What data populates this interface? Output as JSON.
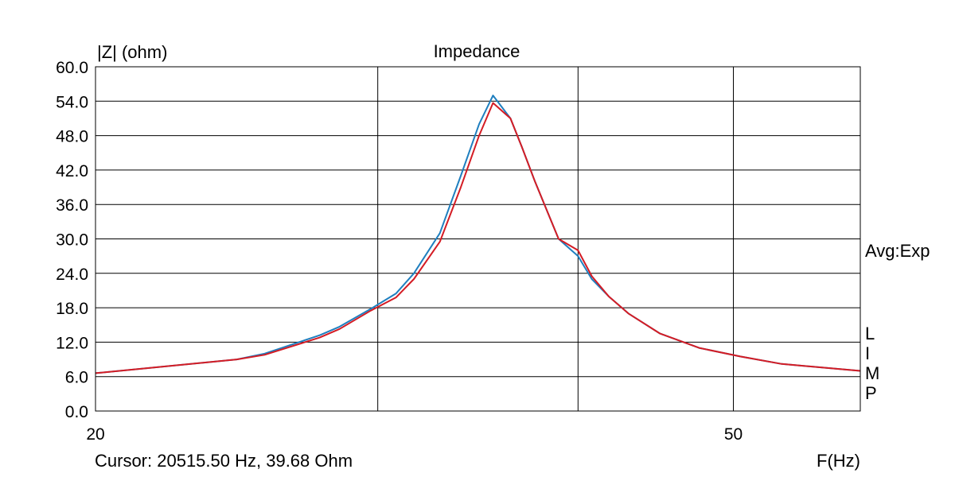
{
  "chart_data": {
    "type": "line",
    "title": "Impedance",
    "ylabel": "|Z| (ohm)",
    "xlabel": "F(Hz)",
    "x_scale": "log",
    "xlim": [
      20,
      60
    ],
    "ylim": [
      0,
      60
    ],
    "y_ticks": [
      "0.0",
      "6.0",
      "12.0",
      "18.0",
      "24.0",
      "30.0",
      "36.0",
      "42.0",
      "48.0",
      "54.0",
      "60.0"
    ],
    "x_tick_labels": [
      {
        "value": 20,
        "label": "20"
      },
      {
        "value": 50,
        "label": "50"
      }
    ],
    "x_gridlines": [
      20,
      30,
      40,
      50,
      60
    ],
    "grid": true,
    "series": [
      {
        "color": "#1f7fbf",
        "x": [
          20,
          24.5,
          25.5,
          27.6,
          28.4,
          29.7,
          30.8,
          31.6,
          32.8,
          33.8,
          34.7,
          35.4,
          36.3,
          36.9,
          37.6,
          38.9,
          40,
          40.8,
          41.8,
          43,
          45,
          47.6,
          50.5,
          53.6,
          60
        ],
        "y": [
          6.6,
          9.0,
          10.0,
          13.2,
          14.7,
          17.8,
          20.5,
          24.0,
          31.0,
          41.0,
          50.0,
          55.0,
          51.0,
          46.0,
          40.0,
          30.0,
          27.0,
          23.0,
          20.0,
          17.0,
          13.5,
          11.0,
          9.5,
          8.2,
          7.0
        ]
      },
      {
        "color": "#d41c24",
        "x": [
          20,
          24.5,
          25.5,
          27.6,
          28.4,
          29.7,
          30.8,
          31.6,
          32.8,
          33.8,
          34.7,
          35.4,
          36.3,
          36.9,
          37.6,
          38.9,
          40,
          40.8,
          41.8,
          43,
          45,
          47.6,
          50.5,
          53.6,
          60
        ],
        "y": [
          6.6,
          9.0,
          9.8,
          12.8,
          14.3,
          17.5,
          19.8,
          23.0,
          29.5,
          39.0,
          48.0,
          53.7,
          51.0,
          46.0,
          40.0,
          30.0,
          28.0,
          23.5,
          20.0,
          17.0,
          13.5,
          11.0,
          9.5,
          8.2,
          7.0
        ]
      }
    ]
  },
  "cursor_text": "Cursor: 20515.50 Hz, 39.68 Ohm",
  "side_labels": {
    "avg": "Avg:Exp",
    "l": "L",
    "i": "I",
    "m": "M",
    "p": "P"
  }
}
